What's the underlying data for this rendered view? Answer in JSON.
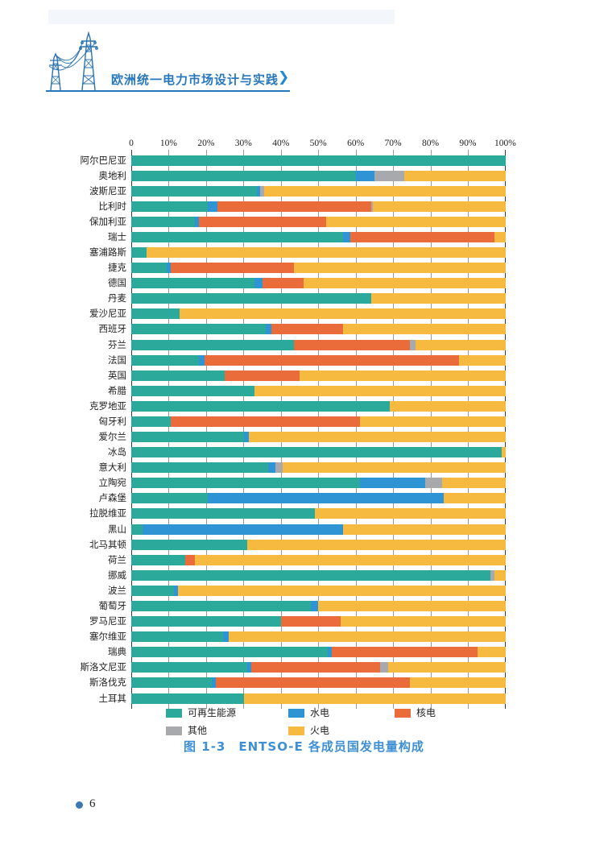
{
  "header": {
    "title": "欧洲统一电力市场设计与实践",
    "chevron": "❯"
  },
  "caption": {
    "text": "图 1-3　ENTSO-E 各成员国发电量构成"
  },
  "footer": {
    "page_number": "6"
  },
  "colors": {
    "renewable": "#2ba99b",
    "hydro": "#2e94d3",
    "nuclear": "#eb6c3b",
    "other": "#a7a9ac",
    "thermal": "#f5ba3f",
    "accent_blue": "#2878be",
    "caption_blue": "#3e8fd4"
  },
  "chart_data": {
    "type": "bar",
    "variant": "horizontal-stacked",
    "title": "图 1-3　ENTSO-E 各成员国发电量构成",
    "xlabel": "",
    "ylabel": "",
    "xlim": [
      0,
      100
    ],
    "axis_ticks": [
      "0",
      "10%",
      "20%",
      "30%",
      "40%",
      "50%",
      "60%",
      "70%",
      "80%",
      "90%",
      "100%"
    ],
    "grid": true,
    "legend_position": "bottom",
    "categories": [
      "阿尔巴尼亚",
      "奥地利",
      "波斯尼亚",
      "比利时",
      "保加利亚",
      "瑞士",
      "塞浦路斯",
      "捷克",
      "德国",
      "丹麦",
      "爱沙尼亚",
      "西班牙",
      "芬兰",
      "法国",
      "英国",
      "希腊",
      "克罗地亚",
      "匈牙利",
      "爱尔兰",
      "冰岛",
      "意大利",
      "立陶宛",
      "卢森堡",
      "拉脱维亚",
      "黑山",
      "北马其顿",
      "荷兰",
      "挪威",
      "波兰",
      "葡萄牙",
      "罗马尼亚",
      "塞尔维亚",
      "瑞典",
      "斯洛文尼亚",
      "斯洛伐克",
      "土耳其"
    ],
    "series": [
      {
        "name": "可再生能源",
        "key": "renewable",
        "values": [
          100,
          60,
          33.5,
          20.5,
          17,
          56.5,
          4,
          9.5,
          33,
          64,
          13,
          36,
          43.5,
          18,
          25,
          33,
          69,
          10.5,
          30,
          99,
          36.5,
          61,
          20.5,
          49,
          3,
          31,
          14.5,
          96,
          11.5,
          48,
          40,
          24.5,
          52.5,
          31,
          21.5,
          30
        ]
      },
      {
        "name": "水电",
        "key": "hydro",
        "values": [
          0,
          5,
          1,
          2.5,
          1,
          2,
          0,
          1,
          2,
          0,
          0,
          1.5,
          0,
          1.5,
          0,
          0,
          0,
          0,
          1.5,
          0,
          2,
          17.5,
          63,
          0,
          53.5,
          0,
          0,
          0,
          1,
          2,
          0,
          1.5,
          1,
          1,
          1,
          0
        ]
      },
      {
        "name": "核电",
        "key": "nuclear",
        "values": [
          0,
          0,
          0,
          41,
          34,
          38.5,
          0,
          33,
          11,
          0,
          0,
          19,
          31,
          68,
          20,
          0,
          0,
          50.5,
          0,
          0,
          0,
          0,
          0,
          0,
          0,
          0,
          2.5,
          0,
          0,
          0,
          16,
          0,
          39,
          34.5,
          52,
          0
        ]
      },
      {
        "name": "其他",
        "key": "other",
        "values": [
          0,
          8,
          1,
          0.5,
          0,
          0,
          0,
          0,
          0,
          0,
          0,
          0,
          1.5,
          0,
          0,
          0,
          0,
          0,
          0,
          0,
          2,
          4.5,
          0,
          0,
          0,
          0,
          0,
          1,
          0,
          0,
          0,
          0,
          0,
          2,
          0,
          0
        ]
      },
      {
        "name": "火电",
        "key": "thermal",
        "values": [
          0,
          27,
          64.5,
          35.5,
          48,
          3,
          96,
          56.5,
          54,
          36,
          87,
          43.5,
          24,
          12.5,
          55,
          67,
          31,
          39,
          68.5,
          1,
          59.5,
          17,
          16.5,
          51,
          43.5,
          69,
          83,
          3,
          87.5,
          50,
          44,
          74,
          7.5,
          31.5,
          25.5,
          70
        ]
      }
    ],
    "legend_rows": [
      [
        {
          "label": "可再生能源",
          "key": "renewable"
        },
        {
          "label": "水电",
          "key": "hydro"
        },
        {
          "label": "核电",
          "key": "nuclear"
        }
      ],
      [
        {
          "label": "其他",
          "key": "other"
        },
        {
          "label": "火电",
          "key": "thermal"
        }
      ]
    ]
  }
}
